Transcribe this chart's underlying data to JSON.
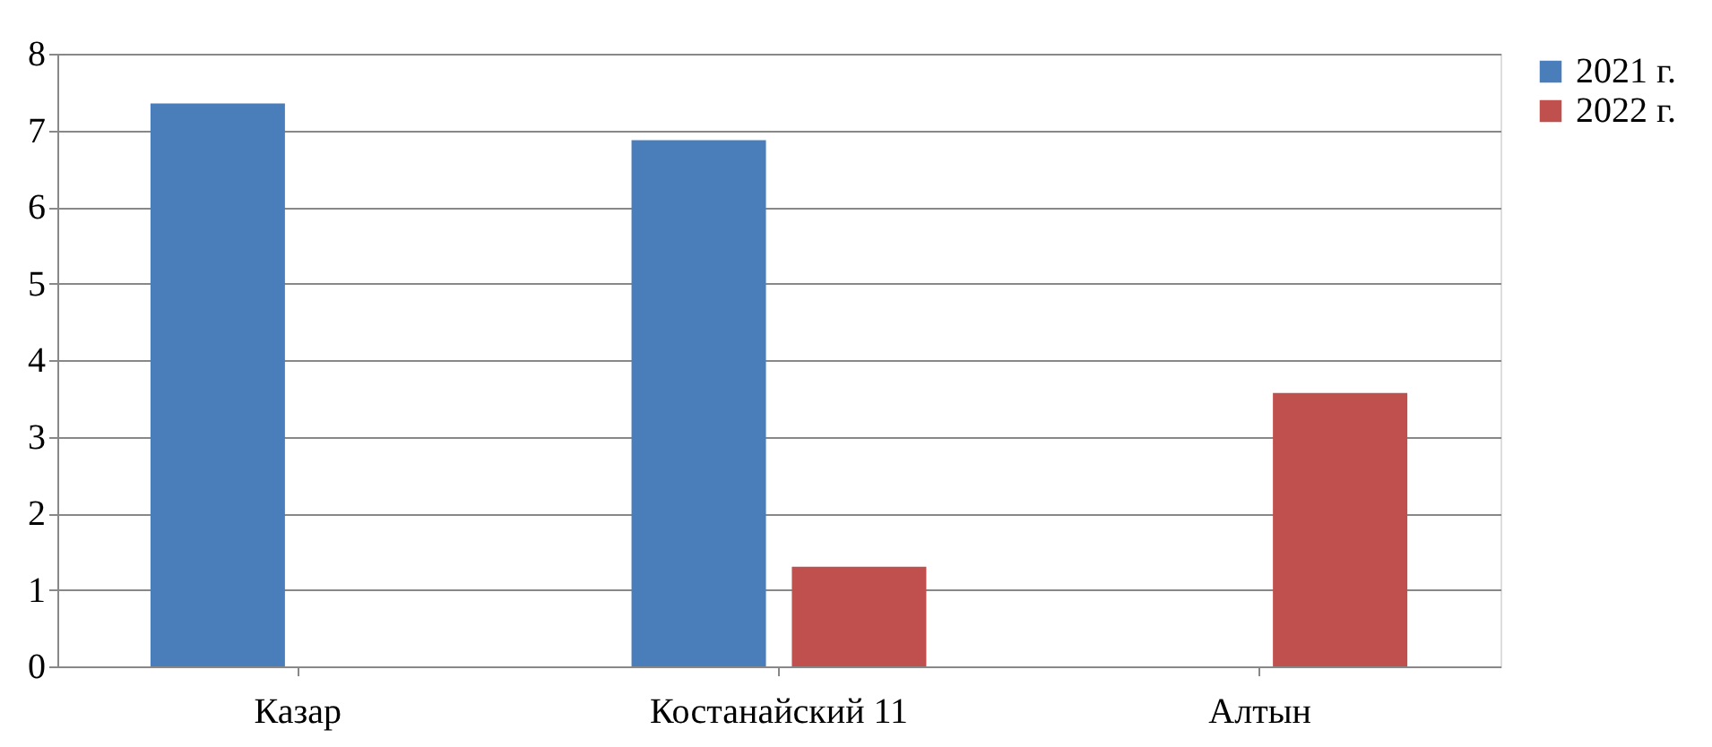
{
  "chart_data": {
    "type": "bar",
    "categories": [
      "Казар",
      "Костанайский 11",
      "Алтын"
    ],
    "series": [
      {
        "name": "2021 г.",
        "color": "#4a7ebb",
        "values": [
          7.35,
          6.87,
          null
        ]
      },
      {
        "name": "2022 г.",
        "color": "#c0504d",
        "values": [
          null,
          1.3,
          3.57
        ]
      }
    ],
    "ylim": [
      0,
      8
    ],
    "yticks": [
      0,
      1,
      2,
      3,
      4,
      5,
      6,
      7,
      8
    ],
    "grid": "y",
    "legend": "right"
  }
}
